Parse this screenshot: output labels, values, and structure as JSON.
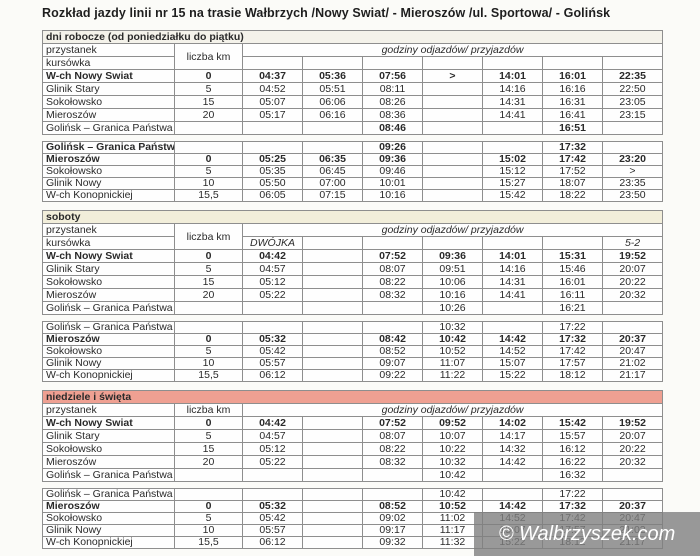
{
  "title": "Rozkład jazdy linii nr 15 na trasie Wałbrzych /Nowy Swiat/ - Mieroszów /ul. Sportowa/ - Golińsk",
  "watermark": {
    "text": "© Walbrzyszek.com"
  },
  "column_headers": {
    "przystanek": "przystanek",
    "kursowka": "kursówka",
    "liczba_km": "liczba km",
    "godziny": "godziny odjazdów/ przyjazdów"
  },
  "colors": {
    "border": "#8e8e8e",
    "bar_weekdays": "#f4f2ea",
    "bar_saturday": "#f2eeda",
    "bar_sunday": "#efa092",
    "watermark_bg": "#808080",
    "watermark_text": "#ffffff"
  },
  "sections": [
    {
      "id": "dni-robocze",
      "title": "dni robocze (od poniedziałku do piątku)",
      "bar_color": "#f4f2ea",
      "header_style": "two-row",
      "kursowka_cells": [
        "",
        "",
        "",
        "",
        "",
        "",
        ""
      ],
      "tables": [
        {
          "rows": [
            {
              "station": "W-ch Nowy Swiat",
              "km": "0",
              "bold": true,
              "times": [
                "04:37",
                "05:36",
                "07:56",
                ">",
                "14:01",
                "16:01",
                "22:35"
              ]
            },
            {
              "station": "Glinik Stary",
              "km": "5",
              "times": [
                "04:52",
                "05:51",
                "08:11",
                "",
                "14:16",
                "16:16",
                "22:50"
              ]
            },
            {
              "station": "Sokołowsko",
              "km": "15",
              "times": [
                "05:07",
                "06:06",
                "08:26",
                "",
                "14:31",
                "16:31",
                "23:05"
              ]
            },
            {
              "station": "Mieroszów",
              "km": "20",
              "times": [
                "05:17",
                "06:16",
                "08:36",
                "",
                "14:41",
                "16:41",
                "23:15"
              ]
            },
            {
              "station": "Golińsk – Granica Państwa",
              "km": "",
              "times_bold": true,
              "times": [
                "",
                "",
                "08:46",
                "",
                "",
                "16:51",
                ""
              ]
            }
          ]
        },
        {
          "rows": [
            {
              "station": "Golińsk – Granica Państwa",
              "km": "",
              "bold": true,
              "times": [
                "",
                "",
                "09:26",
                "",
                "",
                "17:32",
                ""
              ]
            },
            {
              "station": "Mieroszów",
              "km": "0",
              "bold": true,
              "times": [
                "05:25",
                "06:35",
                "09:36",
                "",
                "15:02",
                "17:42",
                "23:20"
              ]
            },
            {
              "station": "Sokołowsko",
              "km": "5",
              "times": [
                "05:35",
                "06:45",
                "09:46",
                "",
                "15:12",
                "17:52",
                ">"
              ]
            },
            {
              "station": "Glinik Nowy",
              "km": "10",
              "times": [
                "05:50",
                "07:00",
                "10:01",
                "",
                "15:27",
                "18:07",
                "23:35"
              ]
            },
            {
              "station": "W-ch Konopnickiej",
              "km": "15,5",
              "times": [
                "06:05",
                "07:15",
                "10:16",
                "",
                "15:42",
                "18:22",
                "23:50"
              ]
            }
          ]
        }
      ]
    },
    {
      "id": "soboty",
      "title": "soboty",
      "bar_color": "#f2eeda",
      "header_style": "two-row",
      "kursowka_cells": [
        "DWÓJKA",
        "",
        "",
        "",
        "",
        "",
        "5-2"
      ],
      "tables": [
        {
          "rows": [
            {
              "station": "W-ch Nowy Swiat",
              "km": "0",
              "bold": true,
              "times": [
                "04:42",
                "",
                "07:52",
                "09:36",
                "14:01",
                "15:31",
                "19:52"
              ]
            },
            {
              "station": "Glinik Stary",
              "km": "5",
              "times": [
                "04:57",
                "",
                "08:07",
                "09:51",
                "14:16",
                "15:46",
                "20:07"
              ]
            },
            {
              "station": "Sokołowsko",
              "km": "15",
              "times": [
                "05:12",
                "",
                "08:22",
                "10:06",
                "14:31",
                "16:01",
                "20:22"
              ]
            },
            {
              "station": "Mieroszów",
              "km": "20",
              "times": [
                "05:22",
                "",
                "08:32",
                "10:16",
                "14:41",
                "16:11",
                "20:32"
              ]
            },
            {
              "station": "Golińsk – Granica Państwa",
              "km": "",
              "times": [
                "",
                "",
                "",
                "10:26",
                "",
                "16:21",
                ""
              ]
            }
          ]
        },
        {
          "rows": [
            {
              "station": "Golińsk – Granica Państwa",
              "km": "",
              "times": [
                "",
                "",
                "",
                "10:32",
                "",
                "17:22",
                ""
              ]
            },
            {
              "station": "Mieroszów",
              "km": "0",
              "bold": true,
              "times": [
                "05:32",
                "",
                "08:42",
                "10:42",
                "14:42",
                "17:32",
                "20:37"
              ]
            },
            {
              "station": "Sokołowsko",
              "km": "5",
              "times": [
                "05:42",
                "",
                "08:52",
                "10:52",
                "14:52",
                "17:42",
                "20:47"
              ]
            },
            {
              "station": "Glinik Nowy",
              "km": "10",
              "times": [
                "05:57",
                "",
                "09:07",
                "11:07",
                "15:07",
                "17:57",
                "21:02"
              ]
            },
            {
              "station": "W-ch Konopnickiej",
              "km": "15,5",
              "times": [
                "06:12",
                "",
                "09:22",
                "11:22",
                "15:22",
                "18:12",
                "21:17"
              ]
            }
          ]
        }
      ]
    },
    {
      "id": "niedziele",
      "title": "niedziele i święta",
      "bar_color": "#efa092",
      "header_style": "one-row",
      "kursowka_cells": [
        "",
        "",
        "",
        "",
        "",
        "",
        ""
      ],
      "tables": [
        {
          "rows": [
            {
              "station": "W-ch Nowy Swiat",
              "km": "0",
              "bold": true,
              "times": [
                "04:42",
                "",
                "07:52",
                "09:52",
                "14:02",
                "15:42",
                "19:52"
              ]
            },
            {
              "station": "Glinik Stary",
              "km": "5",
              "times": [
                "04:57",
                "",
                "08:07",
                "10:07",
                "14:17",
                "15:57",
                "20:07"
              ]
            },
            {
              "station": "Sokołowsko",
              "km": "15",
              "times": [
                "05:12",
                "",
                "08:22",
                "10:22",
                "14:32",
                "16:12",
                "20:22"
              ]
            },
            {
              "station": "Mieroszów",
              "km": "20",
              "times": [
                "05:22",
                "",
                "08:32",
                "10:32",
                "14:42",
                "16:22",
                "20:32"
              ]
            },
            {
              "station": "Golińsk – Granica Państwa",
              "km": "",
              "times": [
                "",
                "",
                "",
                "10:42",
                "",
                "16:32",
                ""
              ]
            }
          ]
        },
        {
          "rows": [
            {
              "station": "Golińsk – Granica Państwa",
              "km": "",
              "times": [
                "",
                "",
                "",
                "10:42",
                "",
                "17:22",
                ""
              ]
            },
            {
              "station": "Mieroszów",
              "km": "0",
              "bold": true,
              "times": [
                "05:32",
                "",
                "08:52",
                "10:52",
                "14:42",
                "17:32",
                "20:37"
              ]
            },
            {
              "station": "Sokołowsko",
              "km": "5",
              "times": [
                "05:42",
                "",
                "09:02",
                "11:02",
                "14:52",
                "17:42",
                "20:47"
              ]
            },
            {
              "station": "Glinik Nowy",
              "km": "10",
              "times": [
                "05:57",
                "",
                "09:17",
                "11:17",
                "15:07",
                "17:57",
                "21:02"
              ]
            },
            {
              "station": "W-ch Konopnickiej",
              "km": "15,5",
              "times": [
                "06:12",
                "",
                "09:32",
                "11:32",
                "15:22",
                "18:12",
                "21:17"
              ]
            }
          ]
        }
      ]
    }
  ]
}
